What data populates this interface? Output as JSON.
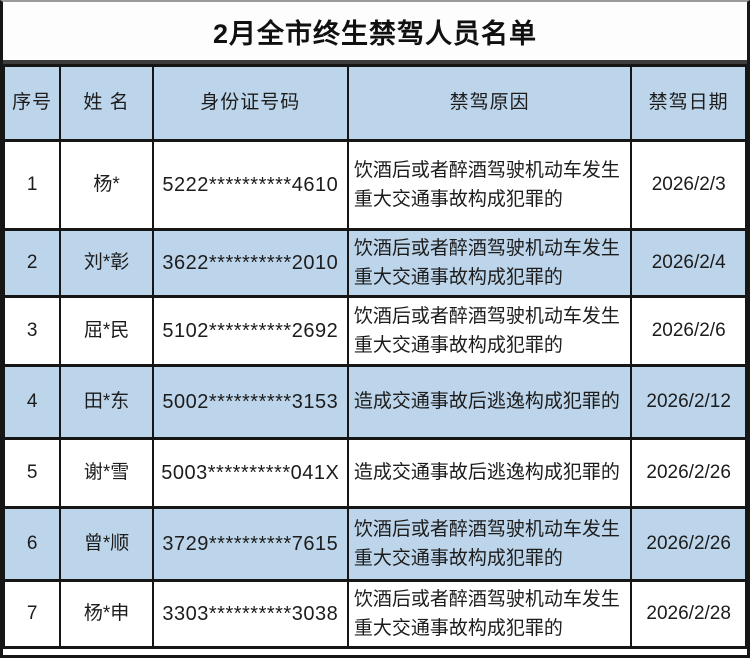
{
  "title": "2月全市终生禁驾人员名单",
  "colors": {
    "header_bg": "#bdd5ea",
    "alt_row_bg": "#bdd5ea",
    "row_bg": "#ffffff",
    "border": "#161616",
    "text": "#1c1c1c"
  },
  "table": {
    "headers": [
      "序号",
      "姓 名",
      "身份证号码",
      "禁驾原因",
      "禁驾日期"
    ],
    "rows": [
      {
        "no": "1",
        "name": "杨*",
        "id": "5222**********4610",
        "reason": "饮酒后或者醉酒驾驶机动车发生重大交通事故构成犯罪的",
        "date": "2026/2/3"
      },
      {
        "no": "2",
        "name": "刘*彰",
        "id": "3622**********2010",
        "reason": "饮酒后或者醉酒驾驶机动车发生重大交通事故构成犯罪的",
        "date": "2026/2/4"
      },
      {
        "no": "3",
        "name": "屈*民",
        "id": "5102**********2692",
        "reason": "饮酒后或者醉酒驾驶机动车发生重大交通事故构成犯罪的",
        "date": "2026/2/6"
      },
      {
        "no": "4",
        "name": "田*东",
        "id": "5002**********3153",
        "reason": "造成交通事故后逃逸构成犯罪的",
        "date": "2026/2/12"
      },
      {
        "no": "5",
        "name": "谢*雪",
        "id": "5003**********041X",
        "reason": "造成交通事故后逃逸构成犯罪的",
        "date": "2026/2/26"
      },
      {
        "no": "6",
        "name": "曾*顺",
        "id": "3729**********7615",
        "reason": "饮酒后或者醉酒驾驶机动车发生重大交通事故构成犯罪的",
        "date": "2026/2/26"
      },
      {
        "no": "7",
        "name": "杨*申",
        "id": "3303**********3038",
        "reason": "饮酒后或者醉酒驾驶机动车发生重大交通事故构成犯罪的",
        "date": "2026/2/28"
      }
    ]
  }
}
